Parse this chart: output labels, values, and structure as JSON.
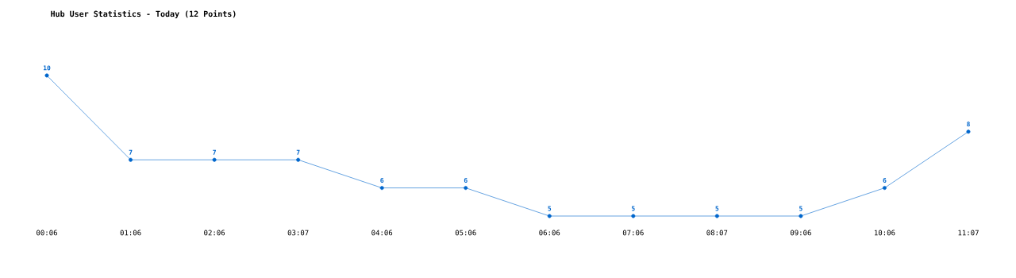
{
  "chart_data": {
    "type": "line",
    "title": "Hub User Statistics - Today (12 Points)",
    "categories": [
      "00:06",
      "01:06",
      "02:06",
      "03:07",
      "04:06",
      "05:06",
      "06:06",
      "07:06",
      "08:07",
      "09:06",
      "10:06",
      "11:07"
    ],
    "values": [
      10,
      7,
      7,
      7,
      6,
      6,
      5,
      5,
      5,
      5,
      6,
      8
    ],
    "color": "#0066cc",
    "marker": "circle",
    "line_style": "solid",
    "data_labels": true
  }
}
